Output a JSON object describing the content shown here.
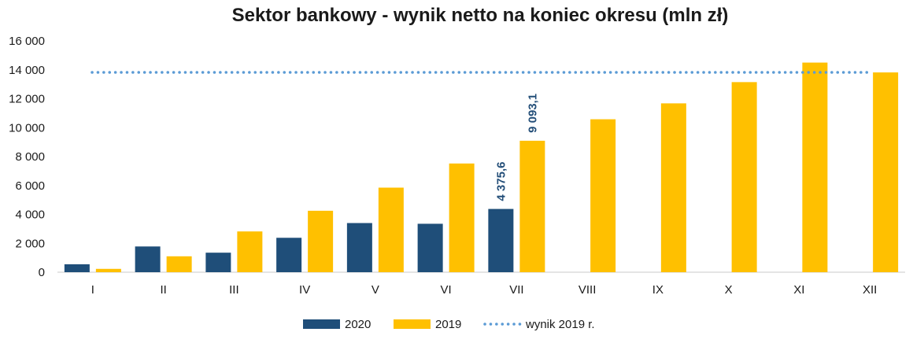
{
  "chart_data": {
    "type": "bar",
    "title": "Sektor bankowy - wynik netto na koniec okresu (mln zł)",
    "categories": [
      "I",
      "II",
      "III",
      "IV",
      "V",
      "VI",
      "VII",
      "VIII",
      "IX",
      "X",
      "XI",
      "XII"
    ],
    "series": [
      {
        "name": "2020",
        "color": "#1f4e79",
        "values": [
          550,
          1780,
          1350,
          2380,
          3400,
          3350,
          4375.6,
          null,
          null,
          null,
          null,
          null
        ]
      },
      {
        "name": "2019",
        "color": "#ffc000",
        "values": [
          230,
          1100,
          2820,
          4250,
          5850,
          7520,
          9093.1,
          10580,
          11680,
          13150,
          14500,
          13820
        ]
      }
    ],
    "reference_line": {
      "name": "wynik 2019 r.",
      "value": 13820,
      "color": "#5b9bd5",
      "style": "dotted"
    },
    "data_labels": [
      {
        "series": "2020",
        "category": "VII",
        "text": "4 375,6"
      },
      {
        "series": "2019",
        "category": "VII",
        "text": "9 093,1"
      }
    ],
    "y_ticks": [
      {
        "value": 0,
        "label": "0"
      },
      {
        "value": 2000,
        "label": "2 000"
      },
      {
        "value": 4000,
        "label": "4 000"
      },
      {
        "value": 6000,
        "label": "6 000"
      },
      {
        "value": 8000,
        "label": "8 000"
      },
      {
        "value": 10000,
        "label": "10 000"
      },
      {
        "value": 12000,
        "label": "12 000"
      },
      {
        "value": 14000,
        "label": "14 000"
      },
      {
        "value": 16000,
        "label": "16 000"
      }
    ],
    "ylim": [
      0,
      16000
    ],
    "grid": false,
    "legend_position": "bottom-center",
    "xlabel": "",
    "ylabel": ""
  }
}
